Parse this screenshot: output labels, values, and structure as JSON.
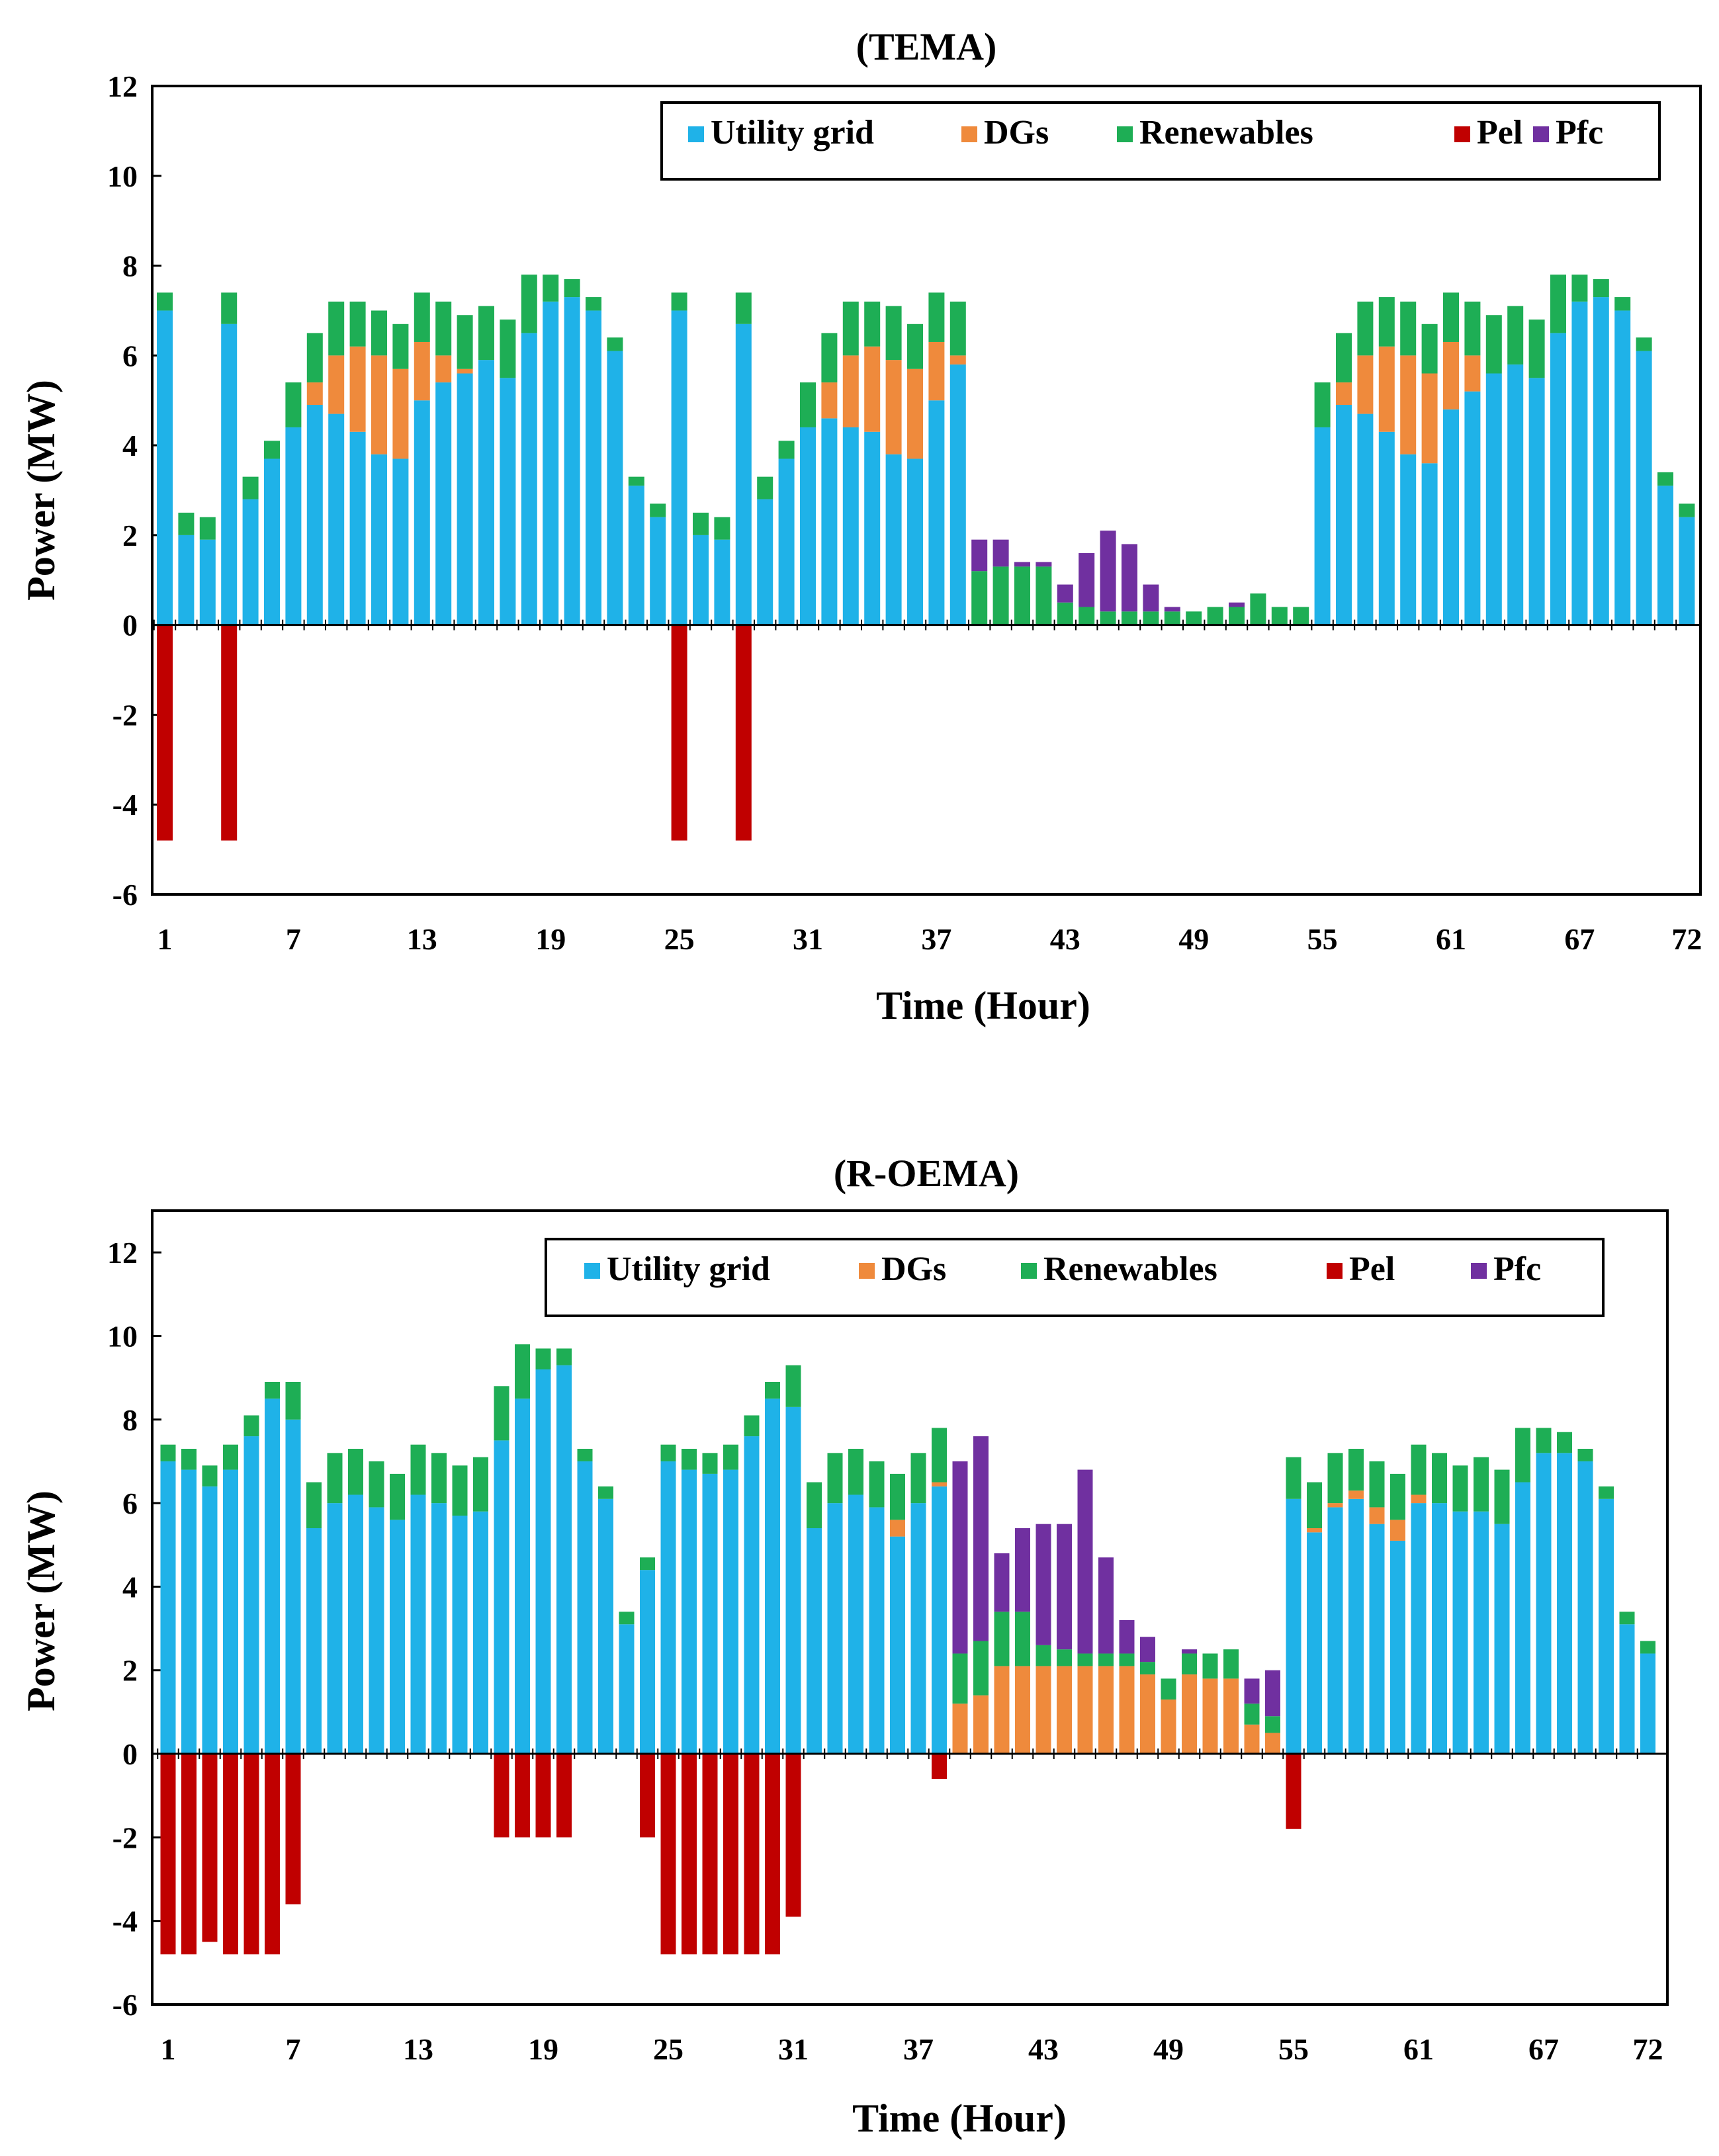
{
  "colors": {
    "utility_grid": "#1FB2E8",
    "dgs": "#EF8A3C",
    "renewables": "#1EAE55",
    "pel": "#C00000",
    "pfc": "#7030A0"
  },
  "chart_data": [
    {
      "type": "bar",
      "stacked": true,
      "title": "(TEMA)",
      "xlabel": "Time (Hour)",
      "ylabel": "Power (MW)",
      "ylim": [
        -6,
        12
      ],
      "yticks": [
        -6,
        -4,
        -2,
        0,
        2,
        4,
        6,
        8,
        10,
        12
      ],
      "x": [
        1,
        2,
        3,
        4,
        5,
        6,
        7,
        8,
        9,
        10,
        11,
        12,
        13,
        14,
        15,
        16,
        17,
        18,
        19,
        20,
        21,
        22,
        23,
        24,
        25,
        26,
        27,
        28,
        29,
        30,
        31,
        32,
        33,
        34,
        35,
        36,
        37,
        38,
        39,
        40,
        41,
        42,
        43,
        44,
        45,
        46,
        47,
        48,
        49,
        50,
        51,
        52,
        53,
        54,
        55,
        56,
        57,
        58,
        59,
        60,
        61,
        62,
        63,
        64,
        65,
        66,
        67,
        68,
        69,
        70,
        71,
        72
      ],
      "xtick_labels": [
        "1",
        "7",
        "13",
        "19",
        "25",
        "31",
        "37",
        "43",
        "49",
        "55",
        "61",
        "67",
        "72"
      ],
      "legend_position": "top-right",
      "series": [
        {
          "name": "Utility grid",
          "color_key": "utility_grid",
          "values": [
            7.0,
            2.0,
            1.9,
            6.7,
            2.8,
            3.7,
            4.4,
            4.9,
            4.7,
            4.3,
            3.8,
            3.7,
            5.0,
            5.4,
            5.6,
            5.9,
            5.5,
            6.5,
            7.2,
            7.3,
            7.0,
            6.1,
            3.1,
            2.4,
            7.0,
            2.0,
            1.9,
            6.7,
            2.8,
            3.7,
            4.4,
            4.6,
            4.4,
            4.3,
            3.8,
            3.7,
            5.0,
            5.8,
            0,
            0,
            0,
            0,
            0,
            0,
            0,
            0,
            0,
            0,
            0,
            0,
            0,
            0,
            0,
            0,
            4.4,
            4.9,
            4.7,
            4.3,
            3.8,
            3.6,
            4.8,
            5.2,
            5.6,
            5.8,
            5.5,
            6.5,
            7.2,
            7.3,
            7.0,
            6.1,
            3.1,
            2.4
          ]
        },
        {
          "name": "DGs",
          "color_key": "dgs",
          "values": [
            0,
            0,
            0,
            0,
            0,
            0,
            0,
            0.5,
            1.3,
            1.9,
            2.2,
            2.0,
            1.3,
            0.6,
            0.1,
            0,
            0,
            0,
            0,
            0,
            0,
            0,
            0,
            0,
            0,
            0,
            0,
            0,
            0,
            0,
            0,
            0.8,
            1.6,
            1.9,
            2.1,
            2.0,
            1.3,
            0.2,
            0,
            0,
            0,
            0,
            0,
            0,
            0,
            0,
            0,
            0,
            0,
            0,
            0,
            0,
            0,
            0,
            0,
            0.5,
            1.3,
            1.9,
            2.2,
            2.0,
            1.5,
            0.8,
            0,
            0,
            0,
            0,
            0,
            0,
            0,
            0,
            0,
            0
          ]
        },
        {
          "name": "Renewables",
          "color_key": "renewables",
          "values": [
            0.4,
            0.5,
            0.5,
            0.7,
            0.5,
            0.4,
            1.0,
            1.1,
            1.2,
            1.0,
            1.0,
            1.0,
            1.1,
            1.2,
            1.2,
            1.2,
            1.3,
            1.3,
            0.6,
            0.4,
            0.3,
            0.3,
            0.2,
            0.3,
            0.4,
            0.5,
            0.5,
            0.7,
            0.5,
            0.4,
            1.0,
            1.1,
            1.2,
            1.0,
            1.2,
            1.0,
            1.1,
            1.2,
            1.2,
            1.3,
            1.3,
            1.3,
            0.5,
            0.4,
            0.3,
            0.3,
            0.3,
            0.3,
            0.3,
            0.4,
            0.4,
            0.7,
            0.4,
            0.4,
            1.0,
            1.1,
            1.2,
            1.1,
            1.2,
            1.1,
            1.1,
            1.2,
            1.3,
            1.3,
            1.3,
            1.3,
            0.6,
            0.4,
            0.3,
            0.3,
            0.3,
            0.3
          ]
        },
        {
          "name": "Pel",
          "color_key": "pel",
          "values": [
            -4.8,
            0,
            0,
            -4.8,
            0,
            0,
            0,
            0,
            0,
            0,
            0,
            0,
            0,
            0,
            0,
            0,
            0,
            0,
            0,
            0,
            0,
            0,
            0,
            0,
            -4.8,
            0,
            0,
            -4.8,
            0,
            0,
            0,
            0,
            0,
            0,
            0,
            0,
            0,
            0,
            0,
            0,
            0,
            0,
            0,
            0,
            0,
            0,
            0,
            0,
            0,
            0,
            0,
            0,
            0,
            0,
            0,
            0,
            0,
            0,
            0,
            0,
            0,
            0,
            0,
            0,
            0,
            0,
            0,
            0,
            0,
            0,
            0,
            0
          ]
        },
        {
          "name": "Pfc",
          "color_key": "pfc",
          "values": [
            0,
            0,
            0,
            0,
            0,
            0,
            0,
            0,
            0,
            0,
            0,
            0,
            0,
            0,
            0,
            0,
            0,
            0,
            0,
            0,
            0,
            0,
            0,
            0,
            0,
            0,
            0,
            0,
            0,
            0,
            0,
            0,
            0,
            0,
            0,
            0,
            0,
            0,
            0.7,
            0.6,
            0.1,
            0.1,
            0.4,
            1.2,
            1.8,
            1.5,
            0.6,
            0.1,
            0,
            0,
            0.1,
            0,
            0,
            0,
            0,
            0,
            0,
            0,
            0,
            0,
            0,
            0,
            0,
            0,
            0,
            0,
            0,
            0,
            0,
            0,
            0,
            0
          ]
        }
      ]
    },
    {
      "type": "bar",
      "stacked": true,
      "title": "(R-OEMA)",
      "xlabel": "Time (Hour)",
      "ylabel": "Power (MW)",
      "ylim": [
        -6,
        13
      ],
      "yticks": [
        -6,
        -4,
        -2,
        0,
        2,
        4,
        6,
        8,
        10,
        12
      ],
      "x": [
        1,
        2,
        3,
        4,
        5,
        6,
        7,
        8,
        9,
        10,
        11,
        12,
        13,
        14,
        15,
        16,
        17,
        18,
        19,
        20,
        21,
        22,
        23,
        24,
        25,
        26,
        27,
        28,
        29,
        30,
        31,
        32,
        33,
        34,
        35,
        36,
        37,
        38,
        39,
        40,
        41,
        42,
        43,
        44,
        45,
        46,
        47,
        48,
        49,
        50,
        51,
        52,
        53,
        54,
        55,
        56,
        57,
        58,
        59,
        60,
        61,
        62,
        63,
        64,
        65,
        66,
        67,
        68,
        69,
        70,
        71,
        72
      ],
      "xtick_labels": [
        "1",
        "7",
        "13",
        "19",
        "25",
        "31",
        "37",
        "43",
        "49",
        "55",
        "61",
        "67",
        "72"
      ],
      "legend_position": "top-right",
      "series": [
        {
          "name": "Utility grid",
          "color_key": "utility_grid",
          "values": [
            7.0,
            6.8,
            6.4,
            6.8,
            7.6,
            8.5,
            8.0,
            5.4,
            6.0,
            6.2,
            5.9,
            5.6,
            6.2,
            6.0,
            5.7,
            5.8,
            7.5,
            8.5,
            9.2,
            9.3,
            7.0,
            6.1,
            3.1,
            4.4,
            7.0,
            6.8,
            6.7,
            6.8,
            7.6,
            8.5,
            8.3,
            5.4,
            6.0,
            6.2,
            5.9,
            5.2,
            6.0,
            6.4,
            0,
            0,
            0,
            0,
            0,
            0,
            0,
            0,
            0,
            0,
            0,
            0,
            0,
            0,
            0,
            0,
            6.1,
            5.3,
            5.9,
            6.1,
            5.5,
            5.1,
            6.0,
            6.0,
            5.8,
            5.8,
            5.5,
            6.5,
            7.2,
            7.2,
            7.0,
            6.1,
            3.1,
            2.4
          ]
        },
        {
          "name": "DGs",
          "color_key": "dgs",
          "values": [
            0,
            0,
            0,
            0,
            0,
            0,
            0,
            0,
            0,
            0,
            0,
            0,
            0,
            0,
            0,
            0,
            0,
            0,
            0,
            0,
            0,
            0,
            0,
            0,
            0,
            0,
            0,
            0,
            0,
            0,
            0,
            0,
            0,
            0,
            0,
            0.4,
            0,
            0.1,
            1.2,
            1.4,
            2.1,
            2.1,
            2.1,
            2.1,
            2.1,
            2.1,
            2.1,
            1.9,
            1.3,
            1.9,
            1.8,
            1.8,
            0.7,
            0.5,
            0,
            0.1,
            0.1,
            0.2,
            0.4,
            0.5,
            0.2,
            0,
            0,
            0,
            0,
            0,
            0,
            0,
            0,
            0,
            0,
            0
          ]
        },
        {
          "name": "Renewables",
          "color_key": "renewables",
          "values": [
            0.4,
            0.5,
            0.5,
            0.6,
            0.5,
            0.4,
            0.9,
            1.1,
            1.2,
            1.1,
            1.1,
            1.1,
            1.2,
            1.2,
            1.2,
            1.3,
            1.3,
            1.3,
            0.5,
            0.4,
            0.3,
            0.3,
            0.3,
            0.3,
            0.4,
            0.5,
            0.5,
            0.6,
            0.5,
            0.4,
            1.0,
            1.1,
            1.2,
            1.1,
            1.1,
            1.1,
            1.2,
            1.3,
            1.2,
            1.3,
            1.3,
            1.3,
            0.5,
            0.4,
            0.3,
            0.3,
            0.3,
            0.3,
            0.5,
            0.5,
            0.6,
            0.7,
            0.5,
            0.4,
            1.0,
            1.1,
            1.2,
            1.0,
            1.1,
            1.1,
            1.2,
            1.2,
            1.1,
            1.3,
            1.3,
            1.3,
            0.6,
            0.5,
            0.3,
            0.3,
            0.3,
            0.3
          ]
        },
        {
          "name": "Pel",
          "color_key": "pel",
          "values": [
            -4.8,
            -4.8,
            -4.5,
            -4.8,
            -4.8,
            -4.8,
            -3.6,
            0,
            0,
            0,
            0,
            0,
            0,
            0,
            0,
            0,
            -2.0,
            -2.0,
            -2.0,
            -2.0,
            0,
            0,
            0,
            -2.0,
            -4.8,
            -4.8,
            -4.8,
            -4.8,
            -4.8,
            -4.8,
            -3.9,
            0,
            0,
            0,
            0,
            0,
            0,
            -0.6,
            0,
            0,
            0,
            0,
            0,
            0,
            0,
            0,
            0,
            0,
            0,
            0,
            0,
            0,
            0,
            0,
            -1.8,
            0,
            0,
            0,
            0,
            0,
            0,
            0,
            0,
            0,
            0,
            0,
            0,
            0,
            0,
            0,
            0,
            0
          ]
        },
        {
          "name": "Pfc",
          "color_key": "pfc",
          "values": [
            0,
            0,
            0,
            0,
            0,
            0,
            0,
            0,
            0,
            0,
            0,
            0,
            0,
            0,
            0,
            0,
            0,
            0,
            0,
            0,
            0,
            0,
            0,
            0,
            0,
            0,
            0,
            0,
            0,
            0,
            0,
            0,
            0,
            0,
            0,
            0,
            0,
            0,
            4.6,
            4.9,
            1.4,
            2.0,
            2.9,
            3.0,
            4.4,
            2.3,
            0.8,
            0.6,
            0,
            0.1,
            0,
            0,
            0.6,
            1.1,
            0,
            0,
            0,
            0,
            0,
            0,
            0,
            0,
            0,
            0,
            0,
            0,
            0,
            0,
            0,
            0,
            0,
            0
          ]
        }
      ]
    }
  ]
}
